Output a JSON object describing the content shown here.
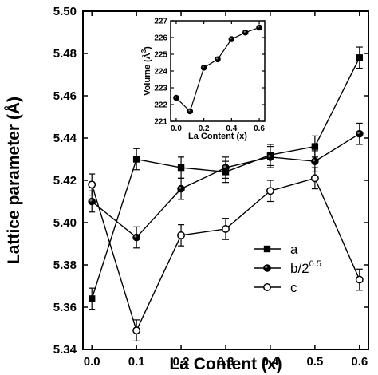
{
  "chart_data": [
    {
      "type": "line",
      "xlabel": "La Content (x)",
      "ylabel": "Lattice parameter (Å)",
      "x": [
        0.0,
        0.1,
        0.2,
        0.3,
        0.4,
        0.5,
        0.6
      ],
      "xlim": [
        -0.02,
        0.62
      ],
      "ylim": [
        5.34,
        5.5
      ],
      "xticks": [
        "0.0",
        "0.1",
        "0.2",
        "0.3",
        "0.4",
        "0.5",
        "0.6"
      ],
      "yticks": [
        "5.34",
        "5.36",
        "5.38",
        "5.40",
        "5.42",
        "5.44",
        "5.46",
        "5.48",
        "5.50"
      ],
      "grid": false,
      "legend_position": "bottom-right",
      "series": [
        {
          "name": "a",
          "marker": "filled-square",
          "values": [
            5.364,
            5.43,
            5.426,
            5.424,
            5.432,
            5.436,
            5.478
          ],
          "error": [
            0.005,
            0.005,
            0.005,
            0.005,
            0.005,
            0.005,
            0.005
          ]
        },
        {
          "name": "b/2",
          "name_sup": "0.5",
          "marker": "half-filled-circle",
          "values": [
            5.41,
            5.393,
            5.416,
            5.426,
            5.431,
            5.429,
            5.442
          ],
          "error": [
            0.005,
            0.005,
            0.005,
            0.005,
            0.005,
            0.005,
            0.005
          ]
        },
        {
          "name": "c",
          "marker": "open-circle",
          "values": [
            5.418,
            5.349,
            5.394,
            5.397,
            5.415,
            5.421,
            5.373
          ],
          "error": [
            0.005,
            0.005,
            0.005,
            0.005,
            0.005,
            0.005,
            0.005
          ]
        }
      ]
    },
    {
      "type": "line",
      "inset": true,
      "xlabel": "La Content (x)",
      "ylabel": "Volume (Å",
      "ylabel_sup": "3",
      "ylabel_close": ")",
      "x": [
        0.0,
        0.1,
        0.2,
        0.3,
        0.4,
        0.5,
        0.6
      ],
      "xlim": [
        -0.04,
        0.64
      ],
      "ylim": [
        221,
        227
      ],
      "xticks": [
        "0.0",
        "0.2",
        "0.4",
        "0.6"
      ],
      "yticks": [
        "221",
        "222",
        "223",
        "224",
        "225",
        "226",
        "227"
      ],
      "values": [
        222.4,
        221.6,
        224.2,
        224.7,
        225.9,
        226.3,
        226.6
      ],
      "marker": "half-filled-circle"
    }
  ]
}
